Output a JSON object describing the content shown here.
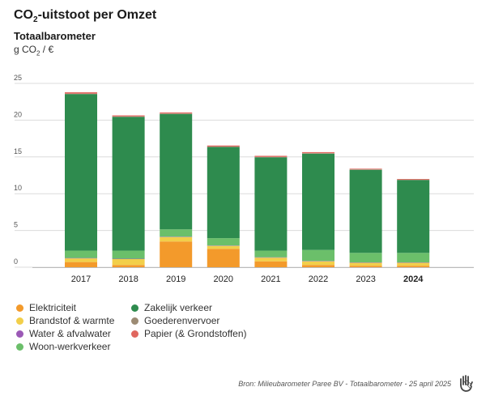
{
  "header": {
    "title_prefix": "CO",
    "title_sub": "2",
    "title_suffix": "-uitstoot per Omzet",
    "subtitle": "Totaalbarometer",
    "unit_prefix": "g CO",
    "unit_sub": "2",
    "unit_suffix": " / €"
  },
  "chart_data": {
    "type": "bar",
    "stacked": true,
    "title": "CO₂-uitstoot per Omzet",
    "subtitle": "Totaalbarometer",
    "ylabel": "g CO₂ / €",
    "ylim": [
      0,
      25
    ],
    "yticks": [
      "0",
      "5",
      "10",
      "15",
      "20",
      "25"
    ],
    "grid": true,
    "categories": [
      "2017",
      "2018",
      "2019",
      "2020",
      "2021",
      "2022",
      "2023",
      "2024"
    ],
    "highlight_category": "2024",
    "series": [
      {
        "name": "Elektriciteit",
        "color": "#F39A2B",
        "values": [
          0.7,
          0.3,
          3.5,
          2.5,
          0.8,
          0.3,
          0.2,
          0.2
        ]
      },
      {
        "name": "Brandstof & warmte",
        "color": "#F2CF4A",
        "values": [
          0.5,
          0.8,
          0.6,
          0.4,
          0.5,
          0.5,
          0.4,
          0.4
        ]
      },
      {
        "name": "Water & afvalwater",
        "color": "#9B59B6",
        "values": [
          0.05,
          0.05,
          0.05,
          0.05,
          0.05,
          0.05,
          0.05,
          0.05
        ]
      },
      {
        "name": "Woon-werkverkeer",
        "color": "#6BBF6A",
        "values": [
          1.0,
          1.1,
          1.0,
          1.0,
          0.9,
          1.5,
          1.3,
          1.3
        ]
      },
      {
        "name": "Zakelijk verkeer",
        "color": "#2E8B4E",
        "values": [
          21.3,
          18.2,
          15.7,
          12.4,
          12.7,
          13.1,
          11.3,
          9.9
        ]
      },
      {
        "name": "Goederenvervoer",
        "color": "#9C8B74",
        "values": [
          0.05,
          0.05,
          0.05,
          0.05,
          0.05,
          0.05,
          0.05,
          0.05
        ]
      },
      {
        "name": "Papier (& Grondstoffen)",
        "color": "#E0675F",
        "values": [
          0.2,
          0.15,
          0.15,
          0.15,
          0.15,
          0.15,
          0.1,
          0.1
        ]
      }
    ]
  },
  "legend": [
    {
      "label": "Elektriciteit",
      "color": "#F39A2B"
    },
    {
      "label": "Zakelijk verkeer",
      "color": "#2E8B4E"
    },
    {
      "label": "Brandstof & warmte",
      "color": "#F2CF4A"
    },
    {
      "label": "Goederenvervoer",
      "color": "#9C8B74"
    },
    {
      "label": "Water & afvalwater",
      "color": "#9B59B6"
    },
    {
      "label": "Papier (& Grondstoffen)",
      "color": "#E0675F"
    },
    {
      "label": "Woon-werkverkeer",
      "color": "#6BBF6A"
    }
  ],
  "footer": {
    "source": "Bron: Milieubarometer Paree BV - Totaalbarometer - 25 april 2025",
    "logo_icon": "hand-logo-icon"
  }
}
